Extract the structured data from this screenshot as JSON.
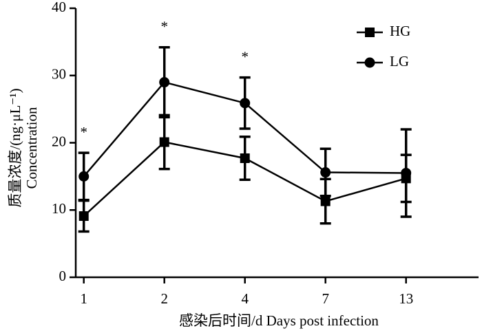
{
  "chart_data": {
    "type": "line",
    "x_label": "感染后时间/d Days post infection",
    "y_label": [
      "质量浓度/(ng·μL⁻¹)",
      "Concentration"
    ],
    "categories": [
      "1",
      "2",
      "4",
      "7",
      "13"
    ],
    "significance": [
      "*",
      "*",
      "*",
      null,
      null
    ],
    "series": [
      {
        "name": "HG",
        "color": "#000000",
        "marker": "square",
        "values": [
          9.1,
          20.1,
          17.7,
          11.3,
          14.7
        ],
        "errors": [
          2.3,
          4.0,
          3.2,
          3.3,
          3.5
        ]
      },
      {
        "name": "LG",
        "color": "#000000",
        "marker": "circle",
        "values": [
          15.0,
          29.0,
          25.9,
          15.6,
          15.5
        ],
        "errors": [
          3.5,
          5.2,
          3.8,
          3.5,
          6.5
        ]
      }
    ],
    "ylim": [
      0,
      40
    ],
    "yticks": [
      0,
      10,
      20,
      30,
      40
    ],
    "grid": false,
    "legend": "upper right"
  }
}
